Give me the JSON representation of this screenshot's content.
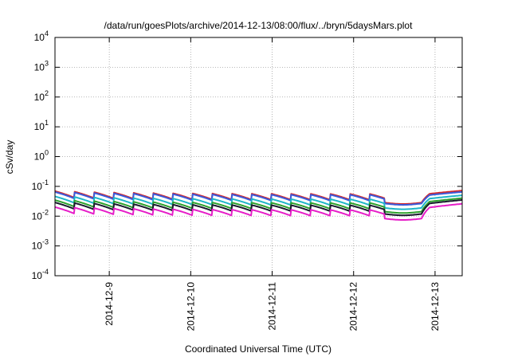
{
  "chart_data": {
    "type": "line",
    "title": "/data/run/goesPlots/archive/2014-12-13/08:00/flux/../bryn/5daysMars.plot",
    "xlabel": "Coordinated Universal Time (UTC)",
    "ylabel": "cSv/day",
    "yscale": "log",
    "ylim": [
      0.0001,
      10000
    ],
    "xlim": [
      "2014-12-08T08:00",
      "2014-12-13T08:00"
    ],
    "x_ticks": [
      "2014-12-9",
      "2014-12-10",
      "2014-12-11",
      "2014-12-12",
      "2014-12-13"
    ],
    "y_ticks": [
      {
        "base": "10",
        "exp": "-4",
        "value": 0.0001
      },
      {
        "base": "10",
        "exp": "-3",
        "value": 0.001
      },
      {
        "base": "10",
        "exp": "-2",
        "value": 0.01
      },
      {
        "base": "10",
        "exp": "-1",
        "value": 0.1
      },
      {
        "base": "10",
        "exp": "0",
        "value": 1
      },
      {
        "base": "10",
        "exp": "1",
        "value": 10
      },
      {
        "base": "10",
        "exp": "2",
        "value": 100
      },
      {
        "base": "10",
        "exp": "3",
        "value": 1000
      },
      {
        "base": "10",
        "exp": "4",
        "value": 10000
      }
    ],
    "grid": true,
    "series": [
      {
        "color": "#d62728",
        "base_level": 0.048,
        "end_level": 0.072
      },
      {
        "color": "#3b5bdb",
        "base_level": 0.045,
        "end_level": 0.065
      },
      {
        "color": "#1fb5c9",
        "base_level": 0.032,
        "end_level": 0.05
      },
      {
        "color": "#2ca02c",
        "base_level": 0.024,
        "end_level": 0.04
      },
      {
        "color": "#1a1a2e",
        "base_level": 0.02,
        "end_level": 0.035
      },
      {
        "color": "#e61ec8",
        "base_level": 0.014,
        "end_level": 0.026
      }
    ]
  }
}
